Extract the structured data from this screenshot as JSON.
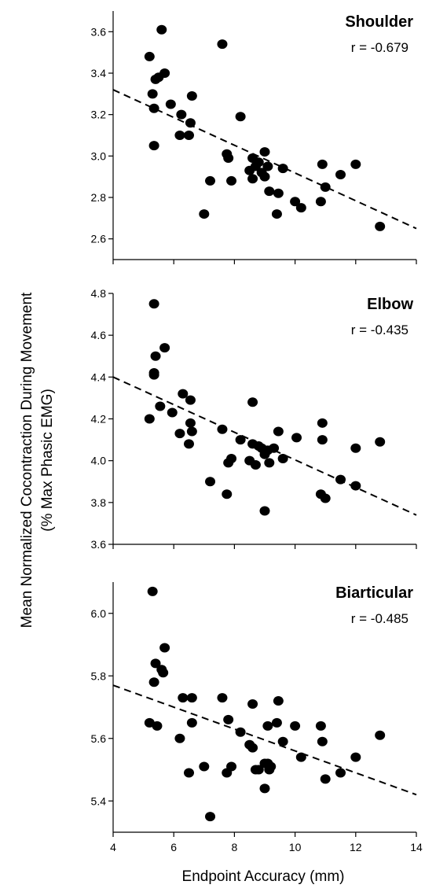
{
  "figure": {
    "ylabel_line1": "Mean Normalized Cocontraction During Movement",
    "ylabel_line2": "(% Max Phasic EMG)",
    "xlabel": "Endpoint Accuracy (mm)"
  },
  "chart_data": [
    {
      "type": "scatter",
      "title": "Shoulder",
      "annotation": "r = -0.679",
      "xlim": [
        4,
        14
      ],
      "ylim": [
        2.5,
        3.7
      ],
      "xticks": [
        4,
        6,
        8,
        10,
        12,
        14
      ],
      "xtick_labels": [],
      "yticks": [
        2.6,
        2.8,
        3.0,
        3.2,
        3.4,
        3.6
      ],
      "ytick_labels": [
        "2.6",
        "2.8",
        "3.0",
        "3.2",
        "3.4",
        "3.6"
      ],
      "trend": {
        "x1": 4,
        "y1": 3.32,
        "x2": 14,
        "y2": 2.65
      },
      "points": [
        [
          5.2,
          3.48
        ],
        [
          5.3,
          3.3
        ],
        [
          5.35,
          3.23
        ],
        [
          5.35,
          3.05
        ],
        [
          5.4,
          3.37
        ],
        [
          5.5,
          3.38
        ],
        [
          5.6,
          3.61
        ],
        [
          5.7,
          3.4
        ],
        [
          5.9,
          3.25
        ],
        [
          6.2,
          3.1
        ],
        [
          6.25,
          3.2
        ],
        [
          6.5,
          3.1
        ],
        [
          6.55,
          3.16
        ],
        [
          6.6,
          3.29
        ],
        [
          7.0,
          2.72
        ],
        [
          7.2,
          2.88
        ],
        [
          7.6,
          3.54
        ],
        [
          7.75,
          3.01
        ],
        [
          7.8,
          2.99
        ],
        [
          7.9,
          2.88
        ],
        [
          8.2,
          3.19
        ],
        [
          8.5,
          2.93
        ],
        [
          8.6,
          2.99
        ],
        [
          8.6,
          2.89
        ],
        [
          8.7,
          2.95
        ],
        [
          8.8,
          2.97
        ],
        [
          8.9,
          2.92
        ],
        [
          9.0,
          3.02
        ],
        [
          9.0,
          2.9
        ],
        [
          9.1,
          2.95
        ],
        [
          9.15,
          2.83
        ],
        [
          9.4,
          2.72
        ],
        [
          9.45,
          2.82
        ],
        [
          9.6,
          2.94
        ],
        [
          10.0,
          2.78
        ],
        [
          10.2,
          2.75
        ],
        [
          10.85,
          2.78
        ],
        [
          10.9,
          2.96
        ],
        [
          11.0,
          2.85
        ],
        [
          11.5,
          2.91
        ],
        [
          12.0,
          2.96
        ],
        [
          12.8,
          2.66
        ]
      ]
    },
    {
      "type": "scatter",
      "title": "Elbow",
      "annotation": "r = -0.435",
      "xlim": [
        4,
        14
      ],
      "ylim": [
        3.6,
        4.8
      ],
      "xticks": [
        4,
        6,
        8,
        10,
        12,
        14
      ],
      "xtick_labels": [],
      "yticks": [
        3.6,
        3.8,
        4.0,
        4.2,
        4.4,
        4.6,
        4.8
      ],
      "ytick_labels": [
        "3.6",
        "3.8",
        "4.0",
        "4.2",
        "4.4",
        "4.6",
        "4.8"
      ],
      "trend": {
        "x1": 4,
        "y1": 4.4,
        "x2": 14,
        "y2": 3.74
      },
      "points": [
        [
          5.2,
          4.2
        ],
        [
          5.35,
          4.42
        ],
        [
          5.35,
          4.41
        ],
        [
          5.35,
          4.75
        ],
        [
          5.4,
          4.5
        ],
        [
          5.55,
          4.26
        ],
        [
          5.7,
          4.54
        ],
        [
          5.95,
          4.23
        ],
        [
          6.2,
          4.13
        ],
        [
          6.3,
          4.32
        ],
        [
          6.5,
          4.08
        ],
        [
          6.55,
          4.18
        ],
        [
          6.6,
          4.14
        ],
        [
          6.55,
          4.29
        ],
        [
          7.2,
          3.9
        ],
        [
          7.6,
          4.15
        ],
        [
          7.75,
          3.84
        ],
        [
          7.8,
          3.99
        ],
        [
          7.9,
          4.01
        ],
        [
          8.2,
          4.1
        ],
        [
          8.5,
          4.0
        ],
        [
          8.6,
          4.28
        ],
        [
          8.6,
          4.08
        ],
        [
          8.7,
          3.98
        ],
        [
          8.8,
          4.07
        ],
        [
          8.9,
          4.06
        ],
        [
          9.0,
          3.76
        ],
        [
          9.0,
          4.03
        ],
        [
          9.1,
          4.05
        ],
        [
          9.15,
          3.99
        ],
        [
          9.3,
          4.06
        ],
        [
          9.45,
          4.14
        ],
        [
          9.6,
          4.01
        ],
        [
          10.05,
          4.11
        ],
        [
          10.85,
          3.84
        ],
        [
          10.9,
          4.1
        ],
        [
          10.9,
          4.18
        ],
        [
          11.0,
          3.82
        ],
        [
          11.5,
          3.91
        ],
        [
          12.0,
          3.88
        ],
        [
          12.0,
          4.06
        ],
        [
          12.8,
          4.09
        ]
      ]
    },
    {
      "type": "scatter",
      "title": "Biarticular",
      "annotation": "r = -0.485",
      "xlim": [
        4,
        14
      ],
      "ylim": [
        5.3,
        6.1
      ],
      "xticks": [
        4,
        6,
        8,
        10,
        12,
        14
      ],
      "xtick_labels": [
        "4",
        "6",
        "8",
        "10",
        "12",
        "14"
      ],
      "yticks": [
        5.4,
        5.6,
        5.8,
        6.0
      ],
      "ytick_labels": [
        "5.4",
        "5.6",
        "5.8",
        "6.0"
      ],
      "trend": {
        "x1": 4,
        "y1": 5.77,
        "x2": 14,
        "y2": 5.42
      },
      "points": [
        [
          5.2,
          5.65
        ],
        [
          5.3,
          6.07
        ],
        [
          5.35,
          5.78
        ],
        [
          5.4,
          5.84
        ],
        [
          5.45,
          5.64
        ],
        [
          5.6,
          5.82
        ],
        [
          5.65,
          5.81
        ],
        [
          5.7,
          5.89
        ],
        [
          6.2,
          5.6
        ],
        [
          6.3,
          5.73
        ],
        [
          6.5,
          5.49
        ],
        [
          6.6,
          5.73
        ],
        [
          6.6,
          5.65
        ],
        [
          7.0,
          5.51
        ],
        [
          7.2,
          5.35
        ],
        [
          7.6,
          5.73
        ],
        [
          7.75,
          5.49
        ],
        [
          7.8,
          5.66
        ],
        [
          7.9,
          5.51
        ],
        [
          8.2,
          5.62
        ],
        [
          8.5,
          5.58
        ],
        [
          8.6,
          5.71
        ],
        [
          8.6,
          5.57
        ],
        [
          8.7,
          5.5
        ],
        [
          8.8,
          5.5
        ],
        [
          9.0,
          5.44
        ],
        [
          9.0,
          5.52
        ],
        [
          9.1,
          5.52
        ],
        [
          9.1,
          5.64
        ],
        [
          9.15,
          5.5
        ],
        [
          9.2,
          5.51
        ],
        [
          9.4,
          5.65
        ],
        [
          9.45,
          5.72
        ],
        [
          9.6,
          5.59
        ],
        [
          10.0,
          5.64
        ],
        [
          10.2,
          5.54
        ],
        [
          10.85,
          5.64
        ],
        [
          10.9,
          5.59
        ],
        [
          11.0,
          5.47
        ],
        [
          11.5,
          5.49
        ],
        [
          12.0,
          5.54
        ],
        [
          12.8,
          5.61
        ]
      ]
    }
  ]
}
